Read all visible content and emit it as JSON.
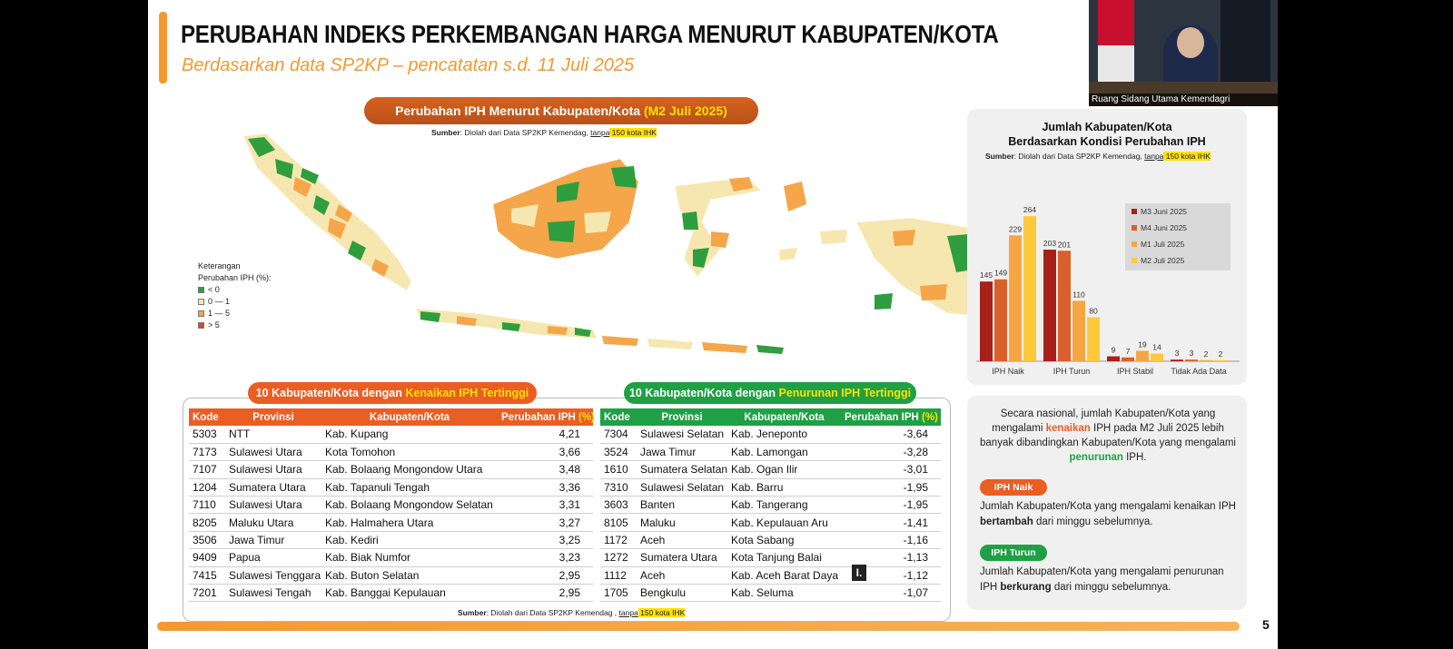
{
  "slide": {
    "title": "PERUBAHAN INDEKS PERKEMBANGAN HARGA MENURUT KABUPATEN/KOTA",
    "subtitle": "Berdasarkan data SP2KP – pencatatan s.d. 11 Juli 2025",
    "page_number": "5"
  },
  "map": {
    "title_main": "Perubahan IPH Menurut Kabupaten/Kota ",
    "title_highlight": "(M2 Juli 2025)",
    "source_prefix": "Sumber",
    "source_text": ": Diolah dari Data SP2KP Kemendag, ",
    "source_underline": "tanpa",
    "source_highlight": " 150 kota IHK",
    "legend": {
      "title_line1": "Keterangan",
      "title_line2": "Perubahan IPH (%):",
      "items": [
        {
          "label": "< 0",
          "color": "#2e9e3e"
        },
        {
          "label": "0 — 1",
          "color": "#f6e7b0"
        },
        {
          "label": "1 — 5",
          "color": "#f5a54a"
        },
        {
          "label": "> 5",
          "color": "#e8402a"
        }
      ]
    }
  },
  "table_up": {
    "title_main": "10 Kabupaten/Kota dengan ",
    "title_highlight": "Kenaikan IPH Tertinggi",
    "headers": {
      "kode": "Kode",
      "provinsi": "Provinsi",
      "kab": "Kabupaten/Kota",
      "pct": "Perubahan IPH ",
      "pct_unit": "(%)"
    },
    "rows": [
      {
        "kode": "5303",
        "provinsi": "NTT",
        "kab": "Kab. Kupang",
        "pct": "4,21"
      },
      {
        "kode": "7173",
        "provinsi": "Sulawesi Utara",
        "kab": "Kota Tomohon",
        "pct": "3,66"
      },
      {
        "kode": "7107",
        "provinsi": "Sulawesi Utara",
        "kab": "Kab. Bolaang Mongondow Utara",
        "pct": "3,48"
      },
      {
        "kode": "1204",
        "provinsi": "Sumatera Utara",
        "kab": "Kab. Tapanuli Tengah",
        "pct": "3,36"
      },
      {
        "kode": "7110",
        "provinsi": "Sulawesi Utara",
        "kab": "Kab. Bolaang Mongondow Selatan",
        "pct": "3,31"
      },
      {
        "kode": "8205",
        "provinsi": "Maluku Utara",
        "kab": "Kab. Halmahera Utara",
        "pct": "3,27"
      },
      {
        "kode": "3506",
        "provinsi": "Jawa Timur",
        "kab": "Kab. Kediri",
        "pct": "3,25"
      },
      {
        "kode": "9409",
        "provinsi": "Papua",
        "kab": "Kab. Biak Numfor",
        "pct": "3,23"
      },
      {
        "kode": "7415",
        "provinsi": "Sulawesi Tenggara",
        "kab": "Kab. Buton Selatan",
        "pct": "2,95"
      },
      {
        "kode": "7201",
        "provinsi": "Sulawesi Tengah",
        "kab": "Kab. Banggai Kepulauan",
        "pct": "2,95"
      }
    ]
  },
  "table_down": {
    "title_main": "10 Kabupaten/Kota dengan ",
    "title_highlight": "Penurunan IPH Tertinggi",
    "headers": {
      "kode": "Kode",
      "provinsi": "Provinsi",
      "kab": "Kabupaten/Kota",
      "pct": "Perubahan IPH ",
      "pct_unit": "(%)"
    },
    "rows": [
      {
        "kode": "7304",
        "provinsi": "Sulawesi Selatan",
        "kab": "Kab. Jeneponto",
        "pct": "-3,64"
      },
      {
        "kode": "3524",
        "provinsi": "Jawa Timur",
        "kab": "Kab. Lamongan",
        "pct": "-3,28"
      },
      {
        "kode": "1610",
        "provinsi": "Sumatera Selatan",
        "kab": "Kab. Ogan Ilir",
        "pct": "-3,01"
      },
      {
        "kode": "7310",
        "provinsi": "Sulawesi Selatan",
        "kab": "Kab. Barru",
        "pct": "-1,95"
      },
      {
        "kode": "3603",
        "provinsi": "Banten",
        "kab": "Kab. Tangerang",
        "pct": "-1,95"
      },
      {
        "kode": "8105",
        "provinsi": "Maluku",
        "kab": "Kab. Kepulauan Aru",
        "pct": "-1,41"
      },
      {
        "kode": "1172",
        "provinsi": "Aceh",
        "kab": "Kota Sabang",
        "pct": "-1,16"
      },
      {
        "kode": "1272",
        "provinsi": "Sumatera Utara",
        "kab": "Kota Tanjung Balai",
        "pct": "-1,13"
      },
      {
        "kode": "1112",
        "provinsi": "Aceh",
        "kab": "Kab. Aceh Barat Daya",
        "pct": "-1,12"
      },
      {
        "kode": "1705",
        "provinsi": "Bengkulu",
        "kab": "Kab. Seluma",
        "pct": "-1,07"
      }
    ]
  },
  "bottom_source": {
    "prefix": "Sumber",
    "text": ": Diolah dari Data SP2KP Kemendag , ",
    "underline": "tanpa",
    "highlight": " 150 kota IHK"
  },
  "chart_panel": {
    "title_line1": "Jumlah Kabupaten/Kota",
    "title_line2": "Berdasarkan Kondisi Perubahan IPH",
    "source_prefix": "Sumber",
    "source_text": ": Diolah dari Data SP2KP Kemendag, ",
    "source_underline": "tanpa",
    "source_highlight": " 150 kota IHK"
  },
  "chart_data": {
    "type": "bar",
    "title": "Jumlah Kabupaten/Kota Berdasarkan Kondisi Perubahan IPH",
    "categories": [
      "IPH Naik",
      "IPH Turun",
      "IPH Stabil",
      "Tidak Ada Data"
    ],
    "series": [
      {
        "name": "M3 Juni 2025",
        "color": "#a8201a",
        "values": [
          145,
          203,
          9,
          3
        ]
      },
      {
        "name": "M4 Juni 2025",
        "color": "#d9602a",
        "values": [
          149,
          201,
          7,
          3
        ]
      },
      {
        "name": "M1 Juli 2025",
        "color": "#f5a642",
        "values": [
          229,
          110,
          19,
          2
        ]
      },
      {
        "name": "M2 Juli 2025",
        "color": "#ffc83a",
        "values": [
          264,
          80,
          14,
          2
        ]
      }
    ],
    "ylim": [
      0,
      280
    ],
    "legend": "top-right",
    "grid": false
  },
  "info_panel": {
    "text_a": "Secara nasional, jumlah Kabupaten/Kota yang mengalami ",
    "text_naik": "kenaikan",
    "text_b": " IPH pada M2 Juli 2025 lebih banyak dibandingkan Kabupaten/Kota yang mengalami ",
    "text_turun": "penurunan",
    "text_c": " IPH.",
    "naik_label": "IPH Naik",
    "naik_desc_a": "Jumlah Kabupaten/Kota yang mengalami kenaikan IPH ",
    "naik_desc_b": "bertambah",
    "naik_desc_c": " dari minggu sebelumnya.",
    "turun_label": "IPH Turun",
    "turun_desc_a": "Jumlah Kabupaten/Kota yang mengalami penurunan IPH ",
    "turun_desc_b": "berkurang",
    "turun_desc_c": " dari minggu sebelumnya."
  },
  "video": {
    "caption": "Ruang Sidang Utama Kemendagri"
  },
  "cursor_glyph": "I."
}
